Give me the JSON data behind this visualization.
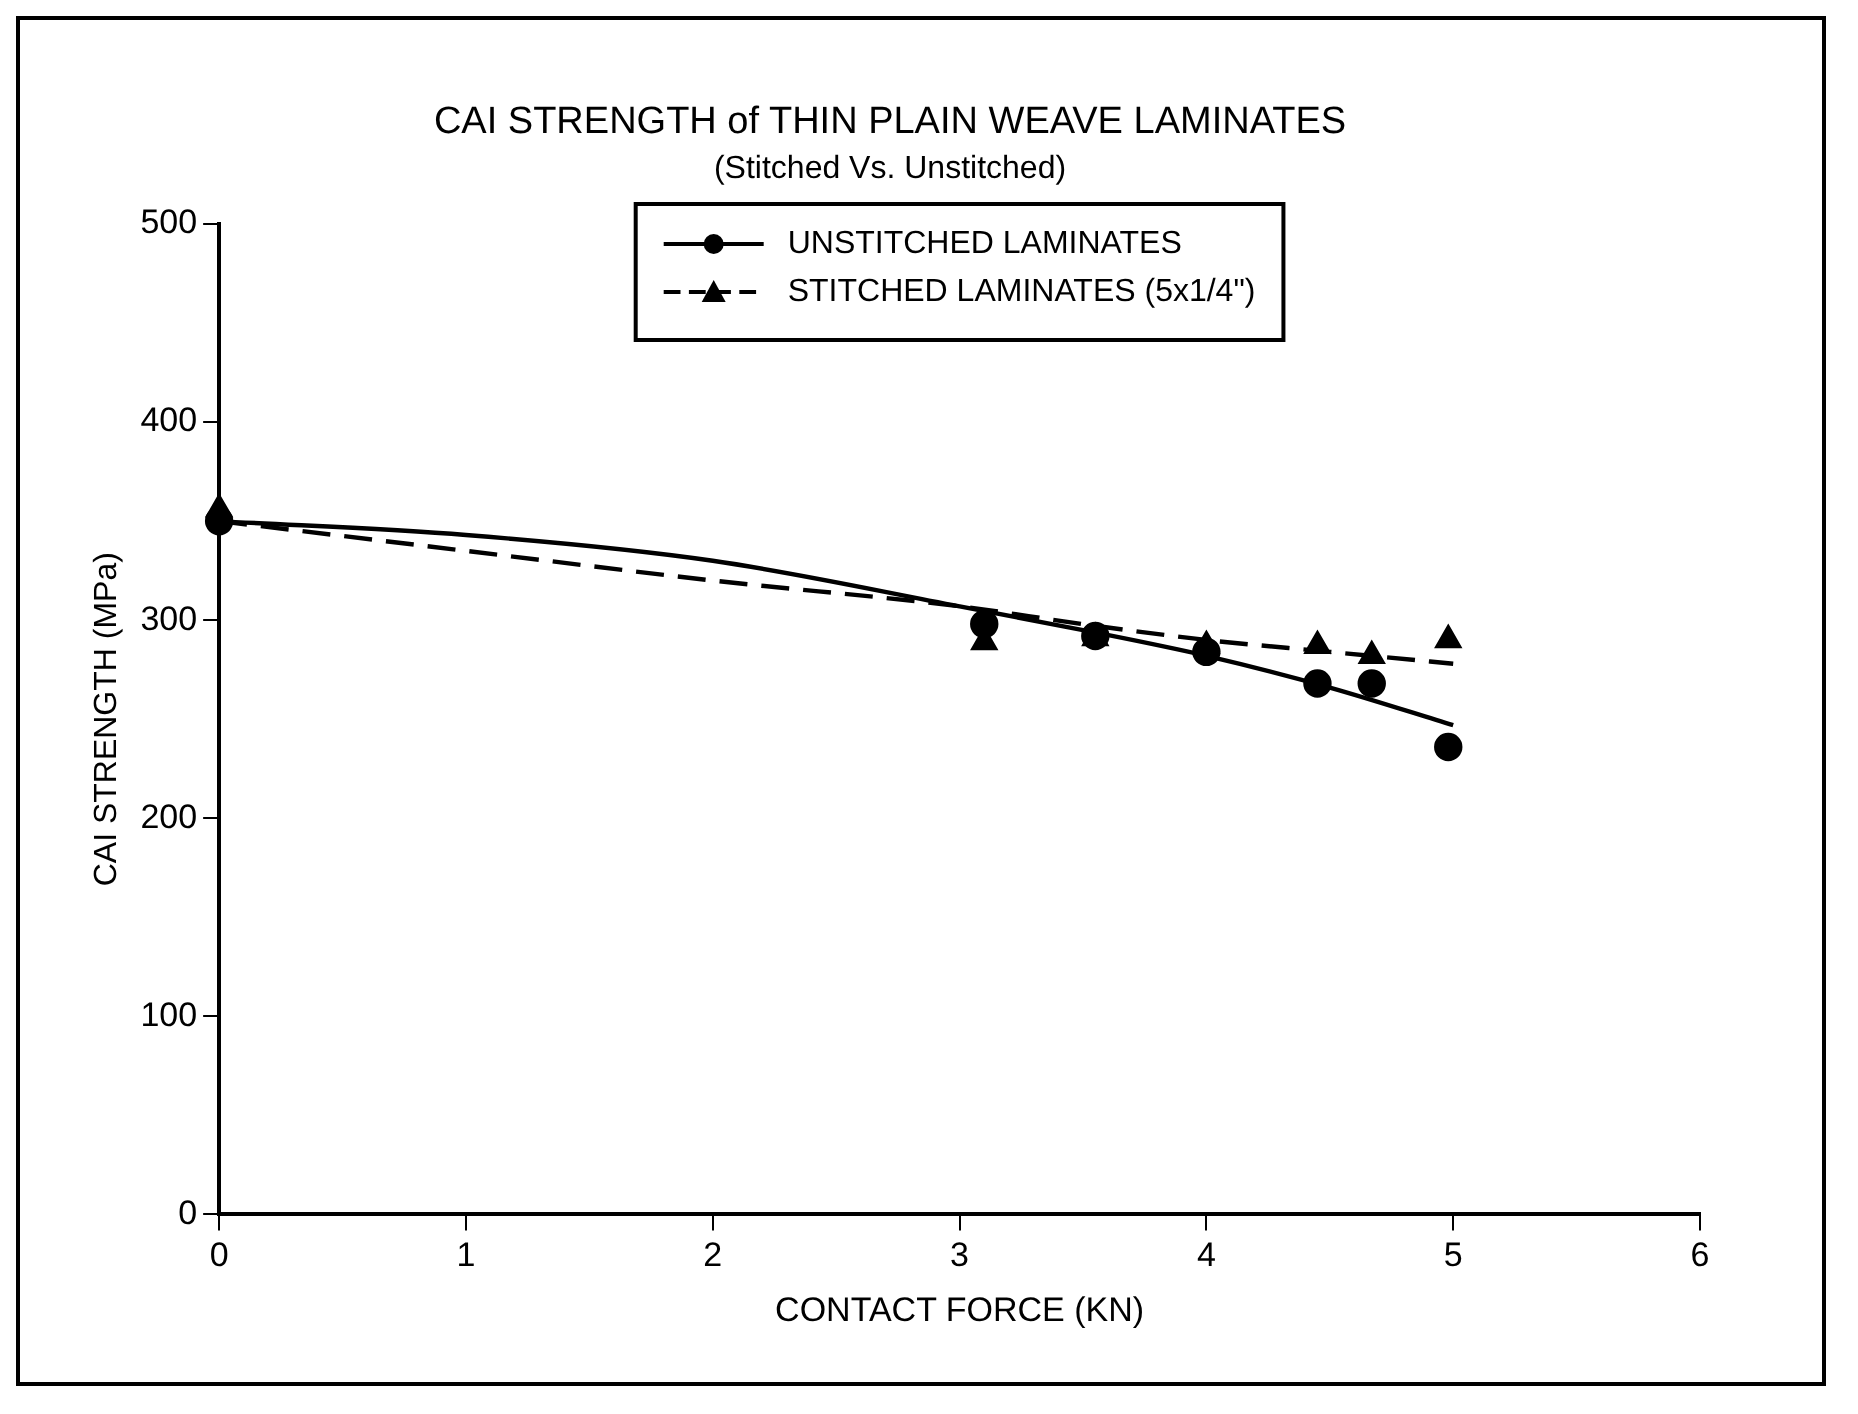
{
  "chart_data": {
    "type": "scatter",
    "title": "CAI STRENGTH of THIN PLAIN WEAVE LAMINATES",
    "subtitle": "(Stitched Vs. Unstitched)",
    "xlabel": "CONTACT FORCE (KN)",
    "ylabel": "CAI STRENGTH (MPa)",
    "xlim": [
      0,
      6
    ],
    "xticks": [
      0,
      1,
      2,
      3,
      4,
      5,
      6
    ],
    "ylim": [
      0,
      500
    ],
    "yticks": [
      0,
      100,
      200,
      300,
      400,
      500
    ],
    "grid": false,
    "legend": "top",
    "series": [
      {
        "name": "UNSTITCHED LAMINATES",
        "marker": "circle",
        "line_style": "solid",
        "color": "#000000",
        "x": [
          0,
          3.1,
          3.55,
          4.0,
          4.45,
          4.67,
          4.98
        ],
        "values": [
          350,
          298,
          292,
          284,
          268,
          268,
          236
        ]
      },
      {
        "name": "STITCHED LAMINATES (5x1/4\")",
        "marker": "triangle",
        "line_style": "dashed",
        "color": "#000000",
        "x": [
          0,
          3.1,
          3.55,
          4.0,
          4.45,
          4.67,
          4.98
        ],
        "values": [
          356,
          289,
          291,
          287,
          287,
          282,
          290
        ]
      },
      {
        "type": "line",
        "marker": "none",
        "line_style": "solid",
        "color": "#000000",
        "x": [
          0,
          1,
          2,
          3,
          3.5,
          4,
          4.5,
          5
        ],
        "values": [
          350,
          343,
          330,
          307,
          295,
          282,
          266,
          247
        ]
      },
      {
        "type": "line",
        "marker": "none",
        "line_style": "dashed",
        "color": "#000000",
        "x": [
          0,
          1,
          2,
          3,
          3.5,
          4,
          4.5,
          5
        ],
        "values": [
          350,
          335,
          320,
          307,
          298,
          290,
          284,
          278
        ]
      }
    ]
  }
}
